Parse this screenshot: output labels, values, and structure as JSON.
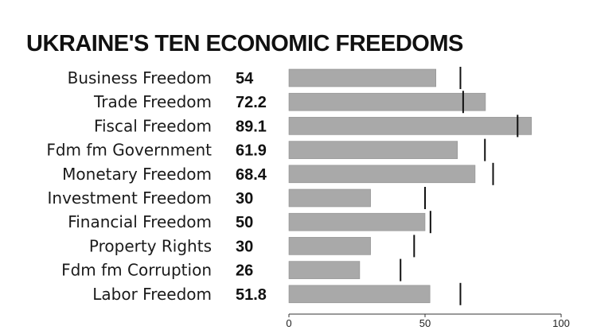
{
  "chart_data": {
    "type": "bar",
    "title": "UKRAINE'S TEN ECONOMIC FREEDOMS",
    "categories": [
      "Business Freedom",
      "Trade Freedom",
      "Fiscal Freedom",
      "Fdm fm Government",
      "Monetary Freedom",
      "Investment Freedom",
      "Financial Freedom",
      "Property Rights",
      "Fdm fm Corruption",
      "Labor Freedom"
    ],
    "series": [
      {
        "values": [
          54,
          72.2,
          89.1,
          61.9,
          68.4,
          30,
          50,
          30,
          26,
          51.8
        ]
      }
    ],
    "value_labels": [
      "54",
      "72.2",
      "89.1",
      "61.9",
      "68.4",
      "30",
      "50",
      "30",
      "26",
      "51.8"
    ],
    "markers": [
      63,
      64,
      84,
      72,
      75,
      50,
      52,
      46,
      41,
      63
    ],
    "xlim": [
      0,
      100
    ],
    "xticks": [
      0,
      50,
      100
    ],
    "grid": false,
    "orientation": "horizontal",
    "bar_color": "#a9a9a9",
    "marker_color": "#111111"
  }
}
